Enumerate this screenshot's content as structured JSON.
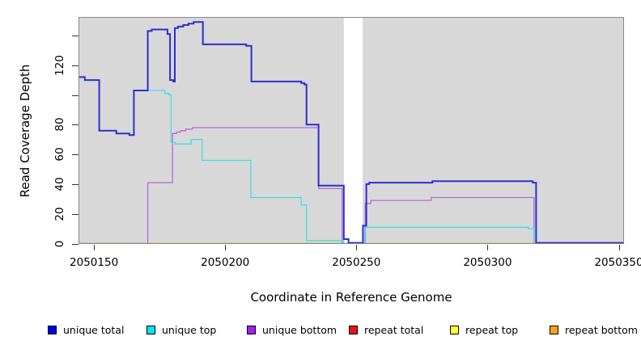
{
  "figure": {
    "xlabel": "Coordinate in Reference Genome",
    "ylabel": "Read Coverage Depth",
    "plot_bg_color": "#D8D8D8",
    "border_color": "#888888"
  },
  "chart_data": {
    "type": "line",
    "subtype": "step-after coverage profile",
    "title": "",
    "xlabel": "Coordinate in Reference Genome",
    "ylabel": "Read Coverage Depth",
    "xlim": [
      2050144.1,
      2050352
    ],
    "ylim": [
      0,
      152.5
    ],
    "grid": false,
    "legend_position": "bottom",
    "gap_region": {
      "x_start": 2050245.2,
      "x_end": 2050252.4
    },
    "x_ticks": [
      {
        "coord": 2050150,
        "label": "2050150"
      },
      {
        "coord": 2050200,
        "label": "2050200"
      },
      {
        "coord": 2050250,
        "label": "2050250"
      },
      {
        "coord": 2050300,
        "label": "2050300"
      },
      {
        "coord": 2050350,
        "label": "2050350"
      }
    ],
    "y_ticks": [
      {
        "value": 0,
        "label": "0"
      },
      {
        "value": 20,
        "label": "20"
      },
      {
        "value": 40,
        "label": "40"
      },
      {
        "value": 60,
        "label": "60"
      },
      {
        "value": 80,
        "label": "80"
      },
      {
        "value": 100,
        "label": ""
      },
      {
        "value": 120,
        "label": "120"
      },
      {
        "value": 140,
        "label": ""
      }
    ],
    "series": [
      {
        "name": "repeat-total",
        "label": "repeat total",
        "color": "#E03030",
        "line_width": 1.2,
        "layer": 0,
        "points": [
          [
            2050144.1,
            0
          ],
          [
            2050352,
            0
          ]
        ]
      },
      {
        "name": "repeat-top",
        "label": "repeat top",
        "color": "#FFFF00",
        "line_width": 1.2,
        "layer": 0,
        "points": [
          [
            2050144.1,
            0
          ],
          [
            2050352,
            0
          ]
        ]
      },
      {
        "name": "repeat-bottom",
        "label": "repeat bottom",
        "color": "#FF9E2A",
        "line_width": 1.6,
        "layer": 0,
        "points": [
          [
            2050144.1,
            0
          ],
          [
            2050352,
            0
          ]
        ]
      },
      {
        "name": "unique-bottom",
        "label": "unique bottom",
        "color": "#B468E0",
        "line_width": 1.3,
        "layer": 1,
        "points": [
          [
            2050144.1,
            0
          ],
          [
            2050170.5,
            41
          ],
          [
            2050179.9,
            74
          ],
          [
            2050181.5,
            75
          ],
          [
            2050183,
            76
          ],
          [
            2050185,
            77
          ],
          [
            2050187.5,
            78
          ],
          [
            2050235.6,
            37
          ],
          [
            2050244.6,
            0
          ],
          [
            2050253.4,
            27
          ],
          [
            2050255.5,
            29
          ],
          [
            2050278.5,
            31
          ],
          [
            2050317.7,
            0
          ],
          [
            2050352,
            0
          ]
        ]
      },
      {
        "name": "unique-top",
        "label": "unique top",
        "color": "#3FDEE3",
        "line_width": 1.3,
        "layer": 1,
        "points": [
          [
            2050144.1,
            112
          ],
          [
            2050146.5,
            110
          ],
          [
            2050152,
            76
          ],
          [
            2050158.5,
            74
          ],
          [
            2050163.5,
            73
          ],
          [
            2050165.2,
            103
          ],
          [
            2050177,
            101
          ],
          [
            2050178.6,
            100
          ],
          [
            2050179.4,
            68
          ],
          [
            2050181,
            67
          ],
          [
            2050187,
            70
          ],
          [
            2050191.2,
            56
          ],
          [
            2050209.8,
            31
          ],
          [
            2050229,
            26
          ],
          [
            2050231,
            2
          ],
          [
            2050245.2,
            0
          ],
          [
            2050253.2,
            11
          ],
          [
            2050315.5,
            10
          ],
          [
            2050317.6,
            0
          ],
          [
            2050352,
            0
          ]
        ]
      },
      {
        "name": "unique-total",
        "label": "unique total",
        "color": "#2E2ED0",
        "line_width": 2,
        "layer": 1,
        "points": [
          [
            2050144.1,
            112
          ],
          [
            2050146.5,
            110
          ],
          [
            2050152,
            76
          ],
          [
            2050158.5,
            74
          ],
          [
            2050163.5,
            73
          ],
          [
            2050165.2,
            103
          ],
          [
            2050170.5,
            143
          ],
          [
            2050172,
            144
          ],
          [
            2050178,
            141
          ],
          [
            2050179,
            110
          ],
          [
            2050180.2,
            109
          ],
          [
            2050180.8,
            145
          ],
          [
            2050182,
            146
          ],
          [
            2050184,
            147
          ],
          [
            2050186,
            148
          ],
          [
            2050188,
            149
          ],
          [
            2050191.5,
            134
          ],
          [
            2050208,
            133
          ],
          [
            2050210,
            109
          ],
          [
            2050229,
            108
          ],
          [
            2050230.2,
            107
          ],
          [
            2050231,
            80
          ],
          [
            2050235.6,
            39
          ],
          [
            2050245.2,
            3
          ],
          [
            2050247,
            0.5
          ],
          [
            2050252.5,
            12
          ],
          [
            2050253.8,
            40
          ],
          [
            2050254.9,
            41
          ],
          [
            2050279,
            42
          ],
          [
            2050317.2,
            41
          ],
          [
            2050318.5,
            0.5
          ],
          [
            2050352,
            0.5
          ]
        ]
      }
    ],
    "legend": [
      {
        "label": "unique total",
        "color": "#0000E6"
      },
      {
        "label": "unique top",
        "color": "#00E5EE"
      },
      {
        "label": "unique bottom",
        "color": "#A020F0"
      },
      {
        "label": "repeat total",
        "color": "#EE1111"
      },
      {
        "label": "repeat top",
        "color": "#FFFF33"
      },
      {
        "label": "repeat bottom",
        "color": "#FFA510"
      }
    ]
  }
}
